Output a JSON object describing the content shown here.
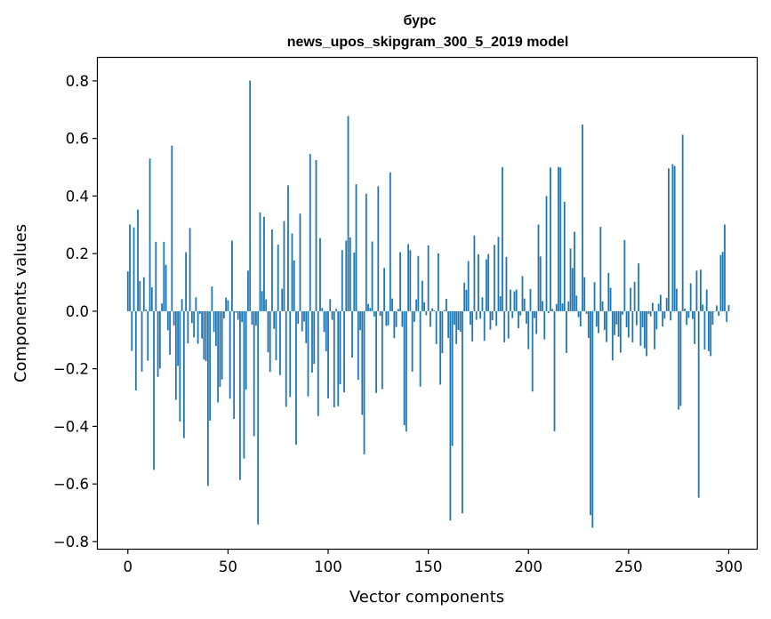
{
  "chart_data": {
    "type": "bar",
    "title": "бурс",
    "subtitle": "news_upos_skipgram_300_5_2019 model",
    "xlabel": "Vector components",
    "ylabel": "Components values",
    "xlim": [
      -15,
      314
    ],
    "ylim": [
      -0.825,
      0.88
    ],
    "xticks": [
      0,
      50,
      100,
      150,
      200,
      250,
      300
    ],
    "xtick_labels": [
      "0",
      "50",
      "100",
      "150",
      "200",
      "250",
      "300"
    ],
    "yticks": [
      -0.8,
      -0.6,
      -0.4,
      -0.2,
      0.0,
      0.2,
      0.4,
      0.6,
      0.8
    ],
    "ytick_labels": [
      "−0.8",
      "−0.6",
      "−0.4",
      "−0.2",
      "0.0",
      "0.2",
      "0.4",
      "0.6",
      "0.8"
    ],
    "grid": false,
    "bar_color": "#1f77b4",
    "values": [
      0.138,
      0.301,
      -0.138,
      0.291,
      -0.275,
      0.353,
      0.105,
      -0.21,
      0.118,
      0.006,
      -0.172,
      0.53,
      0.083,
      -0.551,
      0.241,
      -0.228,
      -0.199,
      0.027,
      0.241,
      0.161,
      -0.066,
      -0.151,
      0.575,
      -0.05,
      -0.308,
      -0.19,
      -0.383,
      0.042,
      -0.441,
      0.205,
      -0.112,
      0.289,
      -0.041,
      -0.091,
      0.048,
      -0.113,
      -0.009,
      -0.095,
      -0.168,
      -0.173,
      -0.607,
      -0.38,
      0.086,
      -0.072,
      -0.121,
      -0.317,
      -0.263,
      -0.237,
      -0.025,
      0.047,
      0.038,
      -0.304,
      0.245,
      -0.374,
      -0.005,
      -0.03,
      -0.586,
      -0.038,
      -0.512,
      -0.272,
      0.141,
      0.801,
      -0.047,
      -0.434,
      -0.05,
      -0.741,
      0.343,
      0.07,
      0.328,
      0.041,
      -0.143,
      -0.211,
      0.284,
      -0.061,
      -0.17,
      0.231,
      -0.222,
      0.078,
      0.313,
      -0.332,
      0.437,
      -0.298,
      0.27,
      0.176,
      -0.464,
      -0.044,
      0.339,
      -0.07,
      -0.036,
      -0.111,
      -0.296,
      0.546,
      -0.213,
      -0.183,
      0.525,
      -0.364,
      0.254,
      0.011,
      -0.072,
      -0.139,
      -0.303,
      0.042,
      -0.03,
      -0.334,
      0.008,
      -0.33,
      -0.254,
      0.212,
      -0.282,
      0.245,
      0.678,
      0.256,
      -0.161,
      0.204,
      0.441,
      -0.238,
      -0.066,
      -0.36,
      -0.497,
      0.408,
      0.025,
      0.011,
      0.242,
      -0.019,
      -0.284,
      0.434,
      -0.016,
      -0.271,
      0.15,
      -0.051,
      -0.049,
      0.482,
      0.044,
      -0.094,
      -0.055,
      0.008,
      0.205,
      -0.054,
      -0.396,
      -0.418,
      0.233,
      0.212,
      -0.21,
      -0.037,
      0.041,
      0.192,
      -0.262,
      0.106,
      0.031,
      -0.014,
      0.229,
      -0.054,
      0.01,
      0.003,
      -0.114,
      0.201,
      -0.255,
      -0.146,
      0.004,
      0.043,
      -0.093,
      -0.727,
      -0.468,
      -0.047,
      -0.114,
      -0.065,
      -0.071,
      -0.702,
      0.099,
      0.074,
      0.174,
      -0.047,
      -0.105,
      0.263,
      -0.03,
      0.198,
      -0.026,
      0.048,
      -0.103,
      0.18,
      0.199,
      -0.064,
      -0.031,
      0.23,
      -0.051,
      0.258,
      0.052,
      0.5,
      -0.108,
      0.188,
      -0.095,
      0.075,
      -0.024,
      0.069,
      0.075,
      -0.059,
      -0.015,
      0.122,
      0.044,
      -0.043,
      -0.132,
      0.077,
      -0.279,
      -0.024,
      -0.079,
      0.301,
      0.19,
      0.035,
      -0.098,
      0.4,
      -0.007,
      0.499,
      0.008,
      -0.417,
      0.025,
      0.501,
      0.499,
      0.027,
      0.38,
      -0.145,
      0.034,
      0.218,
      0.15,
      0.276,
      0.054,
      -0.021,
      -0.053,
      0.648,
      0.118,
      -0.009,
      -0.093,
      -0.708,
      -0.752,
      0.101,
      -0.053,
      -0.076,
      0.293,
      0.034,
      -0.065,
      -0.107,
      0.133,
      0.081,
      -0.171,
      -0.083,
      -0.046,
      -0.089,
      -0.144,
      -0.012,
      0.247,
      -0.056,
      -0.091,
      0.081,
      -0.108,
      0.102,
      -0.049,
      0.166,
      -0.12,
      -0.056,
      -0.129,
      -0.156,
      -0.009,
      -0.018,
      0.029,
      -0.132,
      -0.063,
      0.026,
      0.057,
      -0.053,
      -0.026,
      0.046,
      0.496,
      -0.032,
      0.511,
      0.504,
      0.078,
      -0.342,
      -0.329,
      0.613,
      0.009,
      -0.048,
      -0.023,
      0.097,
      -0.027,
      -0.114,
      0.141,
      -0.648,
      0.144,
      0.023,
      -0.133,
      0.075,
      -0.139,
      -0.156,
      -0.047,
      -0.002,
      0.02,
      -0.016,
      0.195,
      0.206,
      0.301,
      -0.037,
      0.021
    ]
  }
}
